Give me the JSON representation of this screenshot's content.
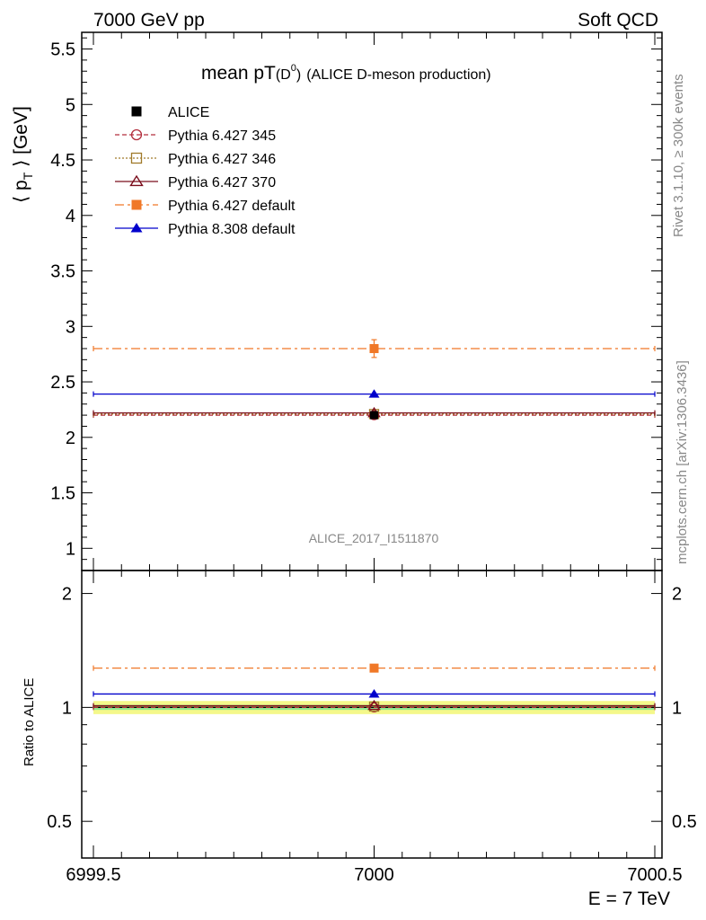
{
  "header": {
    "left": "7000 GeV pp",
    "right": "Soft QCD"
  },
  "title": {
    "main": "mean pT",
    "sub": "(D",
    "sup": "0",
    "close": ")",
    "detail": "(ALICE D-meson production)"
  },
  "side_labels": {
    "rivet": "Rivet 3.1.10, ≥ 300k events",
    "mcplots": "mcplots.cern.ch [arXiv:1306.3436]"
  },
  "analysis_id": "ALICE_2017_I1511870",
  "ylabel_main": {
    "open": "⟨ p",
    "sub": "T",
    "close": " ⟩ [GeV]"
  },
  "ylabel_ratio": "Ratio to ALICE",
  "xlabel": "E = 7 TeV",
  "colors": {
    "alice": "#000000",
    "p345": "#b22d3c",
    "p346": "#a07a2a",
    "p370": "#7a0d1c",
    "pdef": "#f07828",
    "p8": "#0000cc",
    "band_outer": "#f4f88a",
    "band_inner": "#8ee890"
  },
  "chart_data": [
    {
      "type": "scatter",
      "panel": "main",
      "x_range": [
        6999.5,
        7000.5
      ],
      "ylim": [
        0.8,
        5.65
      ],
      "x_ticks": [
        "6999.5",
        "7000",
        "7000.5"
      ],
      "y_ticks": [
        "1",
        "1.5",
        "2",
        "2.5",
        "3",
        "3.5",
        "4",
        "4.5",
        "5",
        "5.5"
      ],
      "legend_position": "top-left",
      "series": [
        {
          "key": "alice",
          "name": "ALICE",
          "x": 7000,
          "y": 2.2,
          "err": 0.03
        },
        {
          "key": "p345",
          "name": "Pythia 6.427 345",
          "x": 7000,
          "y": 2.2,
          "err": 0.0
        },
        {
          "key": "p346",
          "name": "Pythia 6.427 346",
          "x": 7000,
          "y": 2.21,
          "err": 0.0
        },
        {
          "key": "p370",
          "name": "Pythia 6.427 370",
          "x": 7000,
          "y": 2.22,
          "err": 0.0
        },
        {
          "key": "pdef",
          "name": "Pythia 6.427 default",
          "x": 7000,
          "y": 2.8,
          "err": 0.08
        },
        {
          "key": "p8",
          "name": "Pythia 8.308 default",
          "x": 7000,
          "y": 2.39,
          "err": 0.0
        }
      ]
    },
    {
      "type": "scatter",
      "panel": "ratio",
      "x_range": [
        6999.5,
        7000.5
      ],
      "ylim": [
        0.4,
        2.3
      ],
      "y_ticks": [
        "0.5",
        "1",
        "2"
      ],
      "band_outer": [
        0.96,
        1.04
      ],
      "band_inner": [
        0.985,
        1.015
      ],
      "series": [
        {
          "key": "p345",
          "y": 1.0
        },
        {
          "key": "p346",
          "y": 1.005
        },
        {
          "key": "p370",
          "y": 1.01
        },
        {
          "key": "pdef",
          "y": 1.27,
          "err": 0.03
        },
        {
          "key": "p8",
          "y": 1.085
        }
      ]
    }
  ]
}
